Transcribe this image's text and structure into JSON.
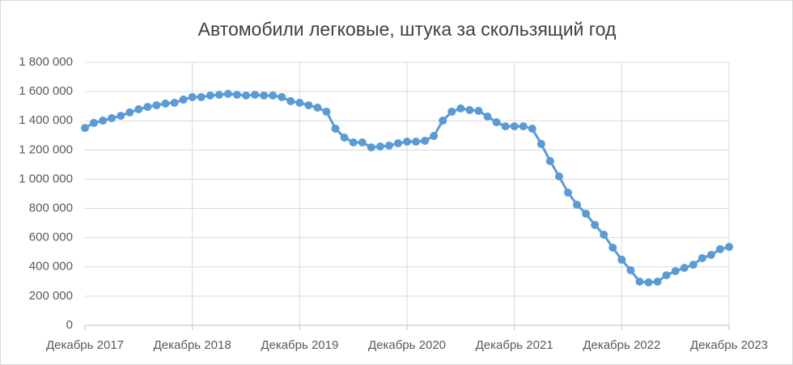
{
  "chart_data": {
    "type": "line",
    "title": "Автомобили легковые, штука за скользящий год",
    "categories": [
      "Декабрь 2017",
      null,
      null,
      null,
      null,
      null,
      null,
      null,
      null,
      null,
      null,
      null,
      "Декабрь 2018",
      null,
      null,
      null,
      null,
      null,
      null,
      null,
      null,
      null,
      null,
      null,
      "Декабрь 2019",
      null,
      null,
      null,
      null,
      null,
      null,
      null,
      null,
      null,
      null,
      null,
      "Декабрь 2020",
      null,
      null,
      null,
      null,
      null,
      null,
      null,
      null,
      null,
      null,
      null,
      "Декабрь 2021",
      null,
      null,
      null,
      null,
      null,
      null,
      null,
      null,
      null,
      null,
      null,
      "Декабрь 2022",
      null,
      null,
      null,
      null,
      null,
      null,
      null,
      null,
      null,
      null,
      null,
      "Декабрь 2023"
    ],
    "series": [
      {
        "color": "#5b9bd5",
        "values": [
          1351000,
          1385000,
          1401000,
          1418000,
          1434000,
          1457000,
          1479000,
          1495000,
          1506000,
          1518000,
          1523000,
          1545000,
          1562000,
          1562000,
          1573000,
          1578000,
          1584000,
          1578000,
          1573000,
          1578000,
          1573000,
          1573000,
          1562000,
          1534000,
          1523000,
          1506000,
          1490000,
          1462000,
          1346000,
          1285000,
          1252000,
          1252000,
          1218000,
          1224000,
          1230000,
          1246000,
          1257000,
          1257000,
          1263000,
          1296000,
          1401000,
          1462000,
          1484000,
          1473000,
          1468000,
          1429000,
          1390000,
          1362000,
          1362000,
          1362000,
          1346000,
          1241000,
          1124000,
          1019000,
          908000,
          825000,
          764000,
          687000,
          620000,
          532000,
          449000,
          377000,
          299000,
          294000,
          299000,
          343000,
          371000,
          393000,
          415000,
          460000,
          482000,
          521000,
          537000
        ]
      }
    ],
    "ylim": [
      0,
      1800000
    ],
    "yticks": [
      0,
      {
        "value": 200000,
        "label": "200 000"
      },
      {
        "value": 400000,
        "label": "400 000"
      },
      {
        "value": 600000,
        "label": "600 000"
      },
      {
        "value": 800000,
        "label": "800 000"
      },
      {
        "value": 1000000,
        "label": "1 000 000"
      },
      {
        "value": 1200000,
        "label": "1 200 000"
      },
      {
        "value": 1400000,
        "label": "1 400 000"
      },
      {
        "value": 1600000,
        "label": "1 600 000"
      },
      {
        "value": 1800000,
        "label": "1 800 000"
      }
    ],
    "grid": true
  }
}
